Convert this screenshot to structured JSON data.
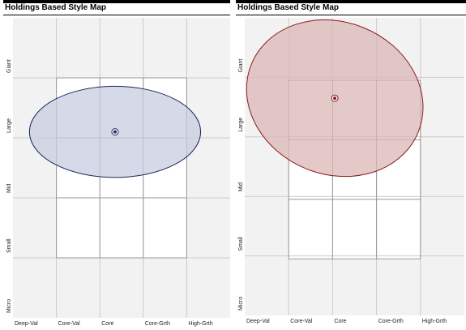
{
  "colors": {
    "background": "#f2f2f2",
    "grid_line": "#cccccc",
    "style_box_line": "#999999",
    "style_box_fill": "#ffffff"
  },
  "chart_data": [
    {
      "type": "scatter",
      "title": "Holdings Based Style Map",
      "x_categories": [
        "Deep-Val",
        "Core-Val",
        "Core",
        "Core-Grth",
        "High-Grth"
      ],
      "y_categories": [
        "Micro",
        "Small",
        "Mid",
        "Large",
        "Giant"
      ],
      "xlim": [
        -1,
        4
      ],
      "ylim": [
        -1,
        4
      ],
      "grid": true,
      "style_box": {
        "x": [
          0,
          3
        ],
        "y": [
          0,
          3
        ]
      },
      "centroid": {
        "x": 1.35,
        "y": 2.1
      },
      "ellipse": {
        "cx": 1.35,
        "cy": 2.1,
        "rx": 1.97,
        "ry": 0.76,
        "rotation_deg": 0
      },
      "ellipse_color": "#1a2a5a",
      "ellipse_fill": "#c8cce0"
    },
    {
      "type": "scatter",
      "title": "Holdings Based Style Map",
      "x_categories": [
        "Deep-Val",
        "Core-Val",
        "Core",
        "Core-Grth",
        "High-Grth"
      ],
      "y_categories": [
        "Micro",
        "Small",
        "Mid",
        "Large",
        "Giant"
      ],
      "xlim": [
        -1,
        4
      ],
      "ylim": [
        -1,
        4
      ],
      "grid": true,
      "style_box": {
        "x": [
          0,
          3
        ],
        "y": [
          -0.05,
          2.95
        ]
      },
      "centroid": {
        "x": 1.05,
        "y": 2.65
      },
      "ellipse": {
        "cx": 1.05,
        "cy": 2.65,
        "rx": 2.05,
        "ry": 1.28,
        "rotation_deg": 22
      },
      "ellipse_color": "#8b1a1a",
      "ellipse_fill": "#dbb7b7"
    }
  ]
}
